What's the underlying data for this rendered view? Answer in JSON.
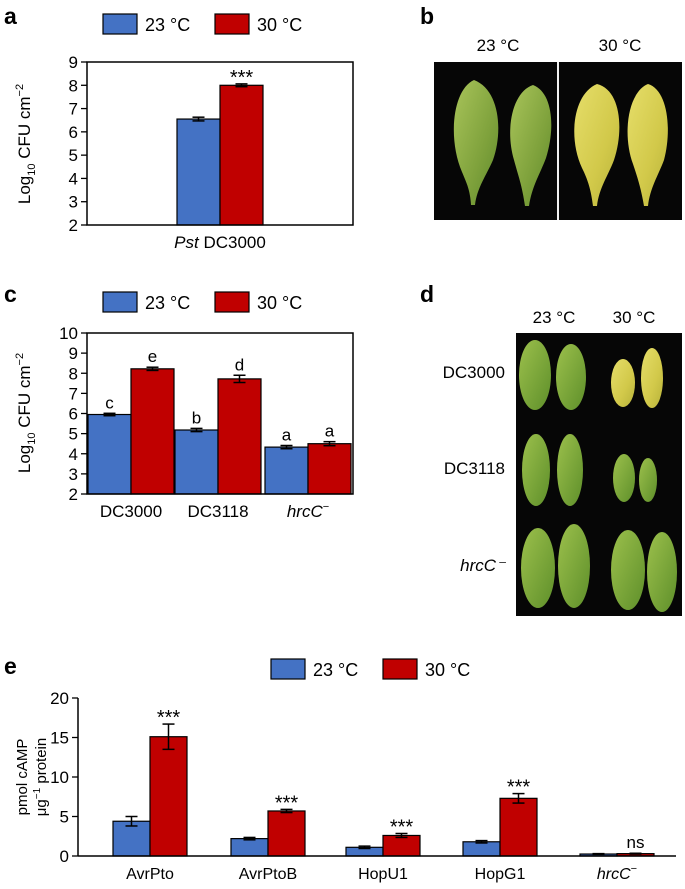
{
  "colors": {
    "c23": "#4472c4",
    "c30": "#c00000",
    "photo_bg": "#060606",
    "axis": "#000000"
  },
  "panels": {
    "a": {
      "letter": "a"
    },
    "b": {
      "letter": "b",
      "labels": [
        "23 °C",
        "30 °C"
      ],
      "photo_desc_23": "green-leaves",
      "photo_desc_30": "yellow-leaves"
    },
    "c": {
      "letter": "c"
    },
    "d": {
      "letter": "d",
      "col_labels": [
        "23 °C",
        "30 °C"
      ],
      "row_labels": [
        "DC3000",
        "DC3118",
        "hrcC⁻"
      ]
    },
    "e": {
      "letter": "e"
    }
  },
  "chart_data": [
    {
      "id": "a",
      "type": "bar",
      "legend": [
        "23 °C",
        "30 °C"
      ],
      "ylabel_base": "Log",
      "ylabel_sub": "10",
      "ylabel_rest": " CFU cm",
      "ylabel_sup": "−2",
      "ylim": [
        2,
        9
      ],
      "yticks": [
        "2",
        "3",
        "4",
        "5",
        "6",
        "7",
        "8",
        "9"
      ],
      "categories": [
        {
          "italic": "Pst",
          "rest": " DC3000"
        }
      ],
      "series": [
        {
          "name": "23 °C",
          "values": [
            6.55
          ],
          "errors": [
            0.08
          ]
        },
        {
          "name": "30 °C",
          "values": [
            8.0
          ],
          "errors": [
            0.06
          ]
        }
      ],
      "annotations": [
        {
          "category": 0,
          "series": 1,
          "text": "***"
        }
      ]
    },
    {
      "id": "c",
      "type": "bar",
      "legend": [
        "23 °C",
        "30 °C"
      ],
      "ylabel_base": "Log",
      "ylabel_sub": "10",
      "ylabel_rest": " CFU cm",
      "ylabel_sup": "−2",
      "ylim": [
        2,
        10
      ],
      "yticks": [
        "2",
        "3",
        "4",
        "5",
        "6",
        "7",
        "8",
        "9",
        "10"
      ],
      "categories": [
        {
          "rest": "DC3000"
        },
        {
          "rest": "DC3118"
        },
        {
          "italic": "hrcC",
          "sup": "−"
        }
      ],
      "series": [
        {
          "name": "23 °C",
          "values": [
            5.95,
            5.18,
            4.33
          ],
          "errors": [
            0.06,
            0.08,
            0.08
          ]
        },
        {
          "name": "30 °C",
          "values": [
            8.22,
            7.72,
            4.5
          ],
          "errors": [
            0.08,
            0.18,
            0.1
          ]
        }
      ],
      "annotations": [
        {
          "category": 0,
          "series": 0,
          "text": "c"
        },
        {
          "category": 0,
          "series": 1,
          "text": "e"
        },
        {
          "category": 1,
          "series": 0,
          "text": "b"
        },
        {
          "category": 1,
          "series": 1,
          "text": "d"
        },
        {
          "category": 2,
          "series": 0,
          "text": "a"
        },
        {
          "category": 2,
          "series": 1,
          "text": "a"
        }
      ]
    },
    {
      "id": "e",
      "type": "bar",
      "legend": [
        "23 °C",
        "30 °C"
      ],
      "ylabel_line1": "pmol cAMP",
      "ylabel_line2_base": "μg",
      "ylabel_line2_sup": "−1",
      "ylabel_line2_rest": " protein",
      "ylim": [
        0,
        20
      ],
      "yticks": [
        "0",
        "5",
        "10",
        "15",
        "20"
      ],
      "categories": [
        {
          "rest": "AvrPto"
        },
        {
          "rest": "AvrPtoB"
        },
        {
          "rest": "HopU1"
        },
        {
          "rest": "HopG1"
        },
        {
          "italic": "hrcC",
          "sup": "−"
        }
      ],
      "series": [
        {
          "name": "23 °C",
          "values": [
            4.4,
            2.2,
            1.1,
            1.8,
            0.25
          ],
          "errors": [
            0.6,
            0.15,
            0.15,
            0.15,
            0.05
          ]
        },
        {
          "name": "30 °C",
          "values": [
            15.1,
            5.7,
            2.6,
            7.3,
            0.3
          ],
          "errors": [
            1.6,
            0.2,
            0.25,
            0.6,
            0.05
          ]
        }
      ],
      "annotations": [
        {
          "category": 0,
          "series": 1,
          "text": "***"
        },
        {
          "category": 1,
          "series": 1,
          "text": "***"
        },
        {
          "category": 2,
          "series": 1,
          "text": "***"
        },
        {
          "category": 3,
          "series": 1,
          "text": "***"
        },
        {
          "category": 4,
          "series": 1,
          "text": "ns"
        }
      ]
    }
  ]
}
